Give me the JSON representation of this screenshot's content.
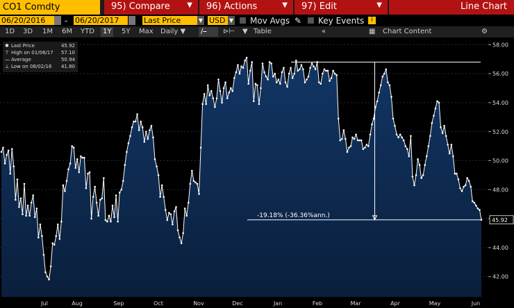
{
  "toolbar": {
    "ticker": "CO1 Comdty",
    "compare": "95) Compare",
    "actions": "96) Actions",
    "edit": "97) Edit",
    "chart_kind": "Line Chart"
  },
  "controls": {
    "start_date": "06/20/2016",
    "end_date": "06/20/2017",
    "field": "Last Price",
    "currency": "USD",
    "mov_avgs": "Mov Avgs",
    "key_events": "Key Events",
    "info": "i"
  },
  "range_bar": {
    "buttons": [
      "1D",
      "3D",
      "1M",
      "6M",
      "YTD",
      "1Y",
      "5Y",
      "Max"
    ],
    "selected": "1Y",
    "period": "Daily",
    "table": "Table",
    "chart_content": "Chart Content"
  },
  "legend": {
    "last_label": "Last Price",
    "last_value": "45.92",
    "high_label": "High on 01/06/17",
    "high_value": "57.10",
    "avg_label": "Average",
    "avg_value": "50.94",
    "low_label": "Low on 08/02/16",
    "low_value": "41.80"
  },
  "chart_data": {
    "type": "line",
    "series_color": "#ffffff",
    "fill_color": "#0e2a4e",
    "ylim": [
      40.6,
      58.4
    ],
    "y_ticks": [
      "42.00",
      "44.00",
      "46.00",
      "48.00",
      "50.00",
      "52.00",
      "54.00",
      "56.00",
      "58.00"
    ],
    "x_labels": [
      "Jul",
      "Aug",
      "Sep",
      "Oct",
      "Nov",
      "Dec",
      "Jan",
      "Feb",
      "Mar",
      "Apr",
      "May",
      "Jun"
    ],
    "last_price_label": "45.92",
    "annotation": "-19.18% (-36.36%ann.)",
    "annotation_from": 56.8,
    "annotation_to": 45.92,
    "values": [
      50.6,
      50.9,
      49.8,
      50.4,
      50.7,
      49.1,
      50.8,
      49.6,
      47.3,
      48.7,
      46.8,
      47.4,
      46.3,
      48.4,
      46.2,
      46.9,
      46.2,
      47.1,
      47.6,
      46.1,
      46.7,
      44.7,
      45.6,
      44.8,
      43.5,
      42.3,
      42.0,
      41.8,
      42.7,
      44.3,
      44.2,
      44.8,
      45.6,
      44.6,
      45.8,
      48.3,
      47.9,
      48.6,
      49.4,
      49.8,
      51.0,
      50.9,
      49.5,
      50.1,
      49.2,
      50.3,
      50.2,
      50.2,
      48.1,
      49.1,
      49.2,
      46.0,
      47.5,
      48.2,
      47.1,
      46.2,
      47.3,
      47.4,
      48.8,
      45.9,
      45.8,
      46.2,
      45.8,
      46.9,
      46.1,
      47.6,
      45.8,
      47.8,
      48.0,
      48.6,
      49.7,
      50.6,
      51.2,
      51.7,
      52.3,
      52.7,
      52.7,
      53.2,
      52.1,
      52.7,
      52.3,
      51.3,
      52.0,
      51.5,
      52.1,
      52.4,
      51.6,
      50.1,
      49.6,
      49.0,
      47.5,
      48.3,
      47.5,
      46.6,
      45.9,
      46.4,
      46.3,
      45.6,
      46.5,
      46.8,
      45.2,
      44.7,
      44.3,
      45.0,
      46.7,
      46.2,
      47.1,
      48.4,
      49.3,
      48.6,
      48.5,
      48.4,
      47.7,
      50.9,
      53.9,
      54.6,
      53.9,
      55.2,
      54.5,
      54.8,
      54.3,
      53.7,
      54.3,
      55.6,
      54.8,
      54.0,
      55.0,
      55.4,
      54.3,
      54.7,
      55.0,
      54.8,
      55.7,
      56.1,
      56.6,
      56.0,
      56.5,
      56.4,
      56.9,
      57.1,
      55.3,
      56.2,
      56.8,
      54.1,
      55.3,
      55.2,
      53.9,
      55.0,
      56.7,
      56.1,
      55.8,
      55.6,
      56.8,
      56.7,
      55.8,
      56.0,
      55.4,
      55.6,
      55.3,
      56.1,
      56.4,
      55.4,
      55.1,
      56.0,
      56.4,
      55.7,
      56.0,
      56.9,
      56.2,
      56.3,
      56.6,
      56.3,
      55.4,
      55.6,
      55.8,
      56.4,
      56.7,
      56.5,
      56.3,
      56.8,
      55.4,
      55.3,
      56.0,
      56.3,
      56.2,
      56.2,
      55.5,
      55.7,
      56.2,
      56.0,
      55.9,
      52.9,
      51.4,
      51.5,
      52.1,
      51.5,
      50.6,
      50.9,
      51.0,
      51.6,
      51.5,
      51.8,
      51.4,
      51.4,
      51.4,
      50.8,
      50.9,
      51.1,
      51.0,
      51.8,
      52.5,
      52.9,
      53.7,
      54.1,
      54.7,
      55.2,
      55.8,
      56.0,
      56.3,
      55.4,
      55.2,
      54.4,
      52.9,
      52.4,
      51.8,
      51.6,
      51.8,
      51.6,
      51.4,
      51.0,
      50.8,
      50.3,
      51.7,
      48.9,
      48.3,
      49.0,
      50.1,
      49.7,
      48.8,
      49.0,
      49.7,
      50.3,
      51.0,
      51.7,
      52.6,
      53.1,
      53.6,
      54.1,
      54.0,
      52.3,
      51.9,
      52.4,
      51.7,
      51.1,
      50.5,
      51.1,
      50.3,
      49.1,
      49.1,
      48.7,
      48.1,
      47.9,
      48.2,
      48.3,
      48.8,
      48.6,
      48.2,
      47.2,
      47.1,
      46.9,
      46.7,
      46.6,
      45.92
    ]
  }
}
